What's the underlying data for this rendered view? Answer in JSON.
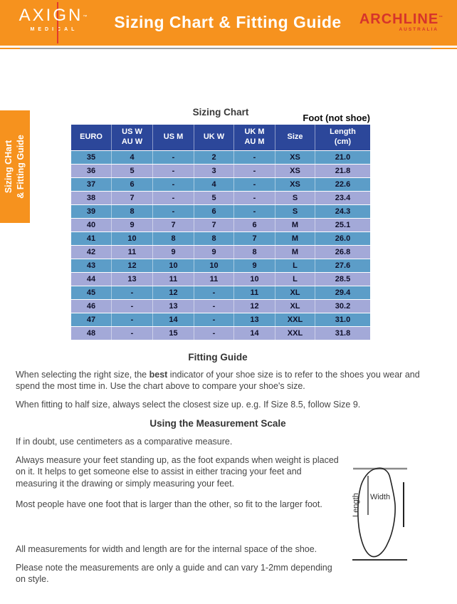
{
  "colors": {
    "banner_orange": "#F6921E",
    "logo_red": "#E2392D",
    "brand_red": "#D6342B",
    "table_header_navy": "#2C479A",
    "row_blue": "#5C9DC8",
    "row_lavender": "#A3A9D8"
  },
  "banner": {
    "logo_word": "AXIGN",
    "logo_tm": "™",
    "logo_sub": "MEDICAL",
    "title": "Sizing Chart & Fitting Guide",
    "brand_word": "ARCHLINE",
    "brand_tm": "™",
    "brand_sub": "AUSTRALIA"
  },
  "side_tab": {
    "line1": "Sizing CHart",
    "line2": "& Fitting Guide"
  },
  "chart": {
    "title": "Sizing Chart",
    "foot_note": "Foot (not shoe)",
    "columns": [
      [
        "EURO"
      ],
      [
        "US W",
        "AU W"
      ],
      [
        "US M"
      ],
      [
        "UK W"
      ],
      [
        "UK M",
        "AU M"
      ],
      [
        "Size"
      ],
      [
        "Length",
        "(cm)"
      ]
    ],
    "rows": [
      [
        "35",
        "4",
        "-",
        "2",
        "-",
        "XS",
        "21.0"
      ],
      [
        "36",
        "5",
        "-",
        "3",
        "-",
        "XS",
        "21.8"
      ],
      [
        "37",
        "6",
        "-",
        "4",
        "-",
        "XS",
        "22.6"
      ],
      [
        "38",
        "7",
        "-",
        "5",
        "-",
        "S",
        "23.4"
      ],
      [
        "39",
        "8",
        "-",
        "6",
        "-",
        "S",
        "24.3"
      ],
      [
        "40",
        "9",
        "7",
        "7",
        "6",
        "M",
        "25.1"
      ],
      [
        "41",
        "10",
        "8",
        "8",
        "7",
        "M",
        "26.0"
      ],
      [
        "42",
        "11",
        "9",
        "9",
        "8",
        "M",
        "26.8"
      ],
      [
        "43",
        "12",
        "10",
        "10",
        "9",
        "L",
        "27.6"
      ],
      [
        "44",
        "13",
        "11",
        "11",
        "10",
        "L",
        "28.5"
      ],
      [
        "45",
        "-",
        "12",
        "-",
        "11",
        "XL",
        "29.4"
      ],
      [
        "46",
        "-",
        "13",
        "-",
        "12",
        "XL",
        "30.2"
      ],
      [
        "47",
        "-",
        "14",
        "-",
        "13",
        "XXL",
        "31.0"
      ],
      [
        "48",
        "-",
        "15",
        "-",
        "14",
        "XXL",
        "31.8"
      ]
    ]
  },
  "fitting": {
    "heading": "Fitting Guide",
    "p1_pre": "When selecting the right size, the ",
    "p1_bold": "best",
    "p1_post": " indicator of your shoe size is to refer to the shoes you wear and spend the most time in. Use the chart above to compare your shoe's size.",
    "p2": "When fitting to half size, always select the closest size up. e.g. If Size 8.5, follow Size 9."
  },
  "measurement": {
    "heading": "Using the Measurement Scale",
    "p1": "If in doubt, use centimeters as a comparative measure.",
    "p2": "Always measure your feet standing up, as the foot expands when weight is placed on it. It helps to get someone else to assist in either tracing your feet and measuring it the drawing or simply measuring your feet.",
    "p3": "Most people have one foot that is larger than the other, so fit to the larger foot.",
    "p4": "All measurements for width and length are for the internal space of the shoe.",
    "p5": "Please note the measurements are only a guide and can vary 1-2mm depending on style."
  },
  "diagram": {
    "width_label": "Width",
    "length_label": "Length"
  }
}
